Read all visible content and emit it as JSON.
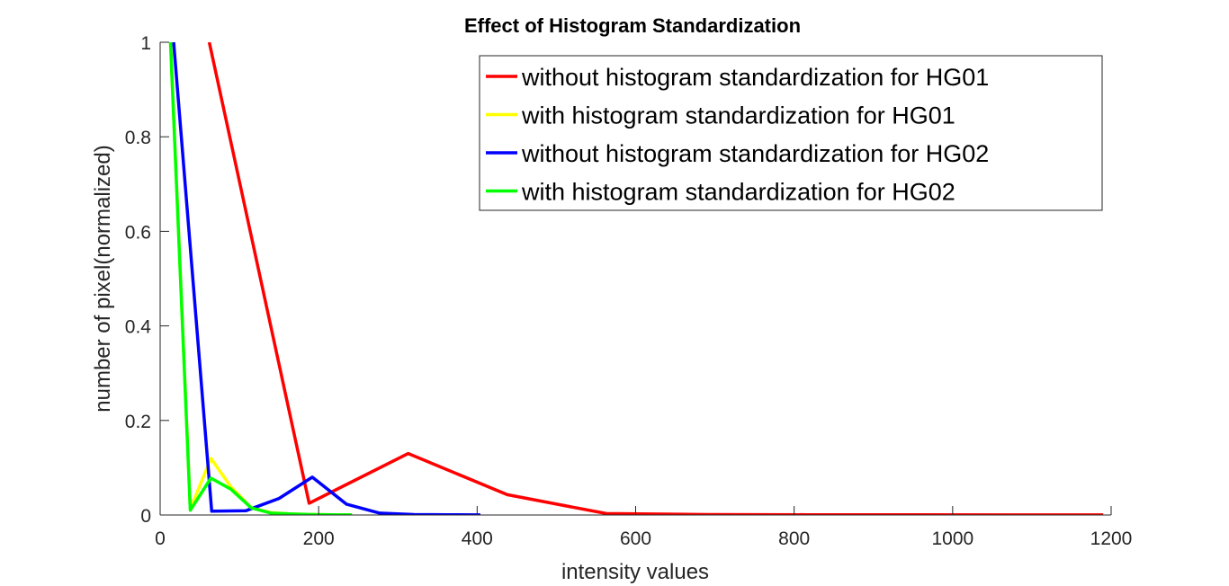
{
  "chart_data": {
    "type": "line",
    "title": "Effect of Histogram Standardization",
    "xlabel": "intensity values",
    "ylabel": "number of pixel(normalized)",
    "xlim": [
      0,
      1200
    ],
    "ylim": [
      0,
      1
    ],
    "xticks": [
      0,
      200,
      400,
      600,
      800,
      1000,
      1200
    ],
    "yticks": [
      0,
      0.2,
      0.4,
      0.6,
      0.8,
      1
    ],
    "xtick_labels": [
      "0",
      "200",
      "400",
      "600",
      "800",
      "1000",
      "1200"
    ],
    "ytick_labels": [
      "0",
      "0.2",
      "0.4",
      "0.6",
      "0.8",
      "1"
    ],
    "grid": false,
    "legend_position": "top-right",
    "series": [
      {
        "name": "without histogram standardization for HG01",
        "color": "#ff0000",
        "x": [
          62,
          188,
          313,
          438,
          563,
          690,
          815,
          940,
          1065,
          1190
        ],
        "y": [
          1.0,
          0.025,
          0.13,
          0.043,
          0.003,
          0.001,
          0.0005,
          0.0003,
          0.0002,
          0.0001
        ]
      },
      {
        "name": "with histogram standardization for HG01",
        "color": "#ffff00",
        "x": [
          13,
          38,
          64,
          89,
          115,
          140,
          166,
          191,
          217,
          242
        ],
        "y": [
          1.0,
          0.012,
          0.12,
          0.06,
          0.015,
          0.005,
          0.002,
          0.001,
          0.0005,
          0.0002
        ]
      },
      {
        "name": "without histogram standardization for HG02",
        "color": "#0000ff",
        "x": [
          17,
          65,
          108,
          150,
          192,
          235,
          277,
          320,
          362,
          404
        ],
        "y": [
          1.0,
          0.008,
          0.009,
          0.035,
          0.08,
          0.023,
          0.004,
          0.001,
          0.0005,
          0.0002
        ]
      },
      {
        "name": "with histogram standardization for HG02",
        "color": "#00ff00",
        "x": [
          13,
          38,
          64,
          89,
          115,
          140,
          166,
          191,
          217,
          242
        ],
        "y": [
          1.0,
          0.01,
          0.078,
          0.055,
          0.015,
          0.004,
          0.002,
          0.001,
          0.0005,
          0.0002
        ]
      }
    ]
  }
}
